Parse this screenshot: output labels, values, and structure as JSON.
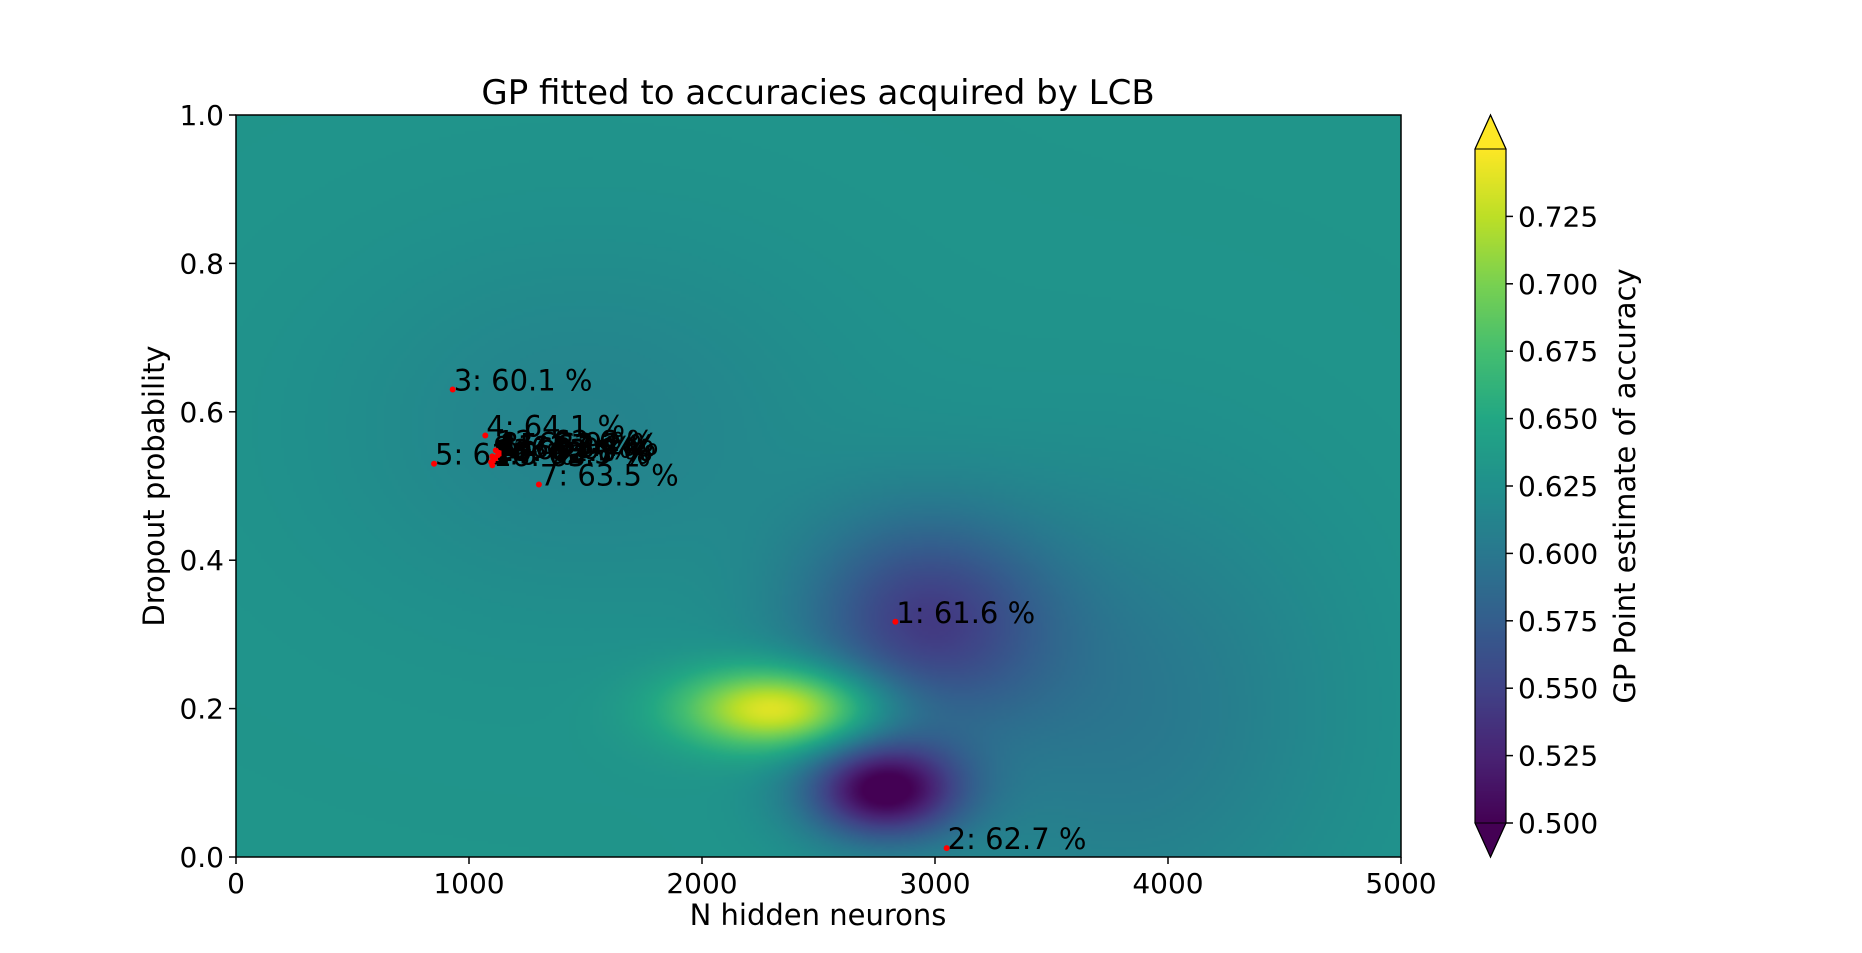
{
  "chart_data": {
    "type": "heatmap",
    "title": "GP fitted to accuracies acquired by LCB",
    "xlabel": "N hidden neurons",
    "ylabel": "Dropout probability",
    "xlim": [
      0,
      5000
    ],
    "ylim": [
      0.0,
      1.0
    ],
    "x_ticks": [
      0,
      1000,
      2000,
      3000,
      4000,
      5000
    ],
    "x_tick_labels": [
      "0",
      "1000",
      "2000",
      "3000",
      "4000",
      "5000"
    ],
    "y_ticks": [
      0.0,
      0.2,
      0.4,
      0.6,
      0.8,
      1.0
    ],
    "y_tick_labels": [
      "0.0",
      "0.2",
      "0.4",
      "0.6",
      "0.8",
      "1.0"
    ],
    "grid": false,
    "colorbar": {
      "label": "GP Point estimate of accuracy",
      "colormap": "viridis",
      "range": [
        0.5,
        0.75
      ],
      "extend": "both",
      "ticks": [
        0.5,
        0.525,
        0.55,
        0.575,
        0.6,
        0.625,
        0.65,
        0.675,
        0.7,
        0.725
      ],
      "tick_labels": [
        "0.500",
        "0.525",
        "0.550",
        "0.575",
        "0.600",
        "0.625",
        "0.650",
        "0.675",
        "0.700",
        "0.725"
      ]
    },
    "surface": {
      "base_value": 0.63,
      "features": [
        {
          "x": 2330,
          "y": 0.2,
          "peak": 0.75,
          "kind": "maximum"
        },
        {
          "x": 2780,
          "y": 0.09,
          "peak": 0.5,
          "kind": "minimum"
        },
        {
          "x": 2950,
          "y": 0.32,
          "peak": 0.555,
          "kind": "minimum"
        },
        {
          "x": 3800,
          "y": 0.2,
          "peak": 0.6,
          "kind": "minimum"
        },
        {
          "x": 1500,
          "y": 0.58,
          "peak": 0.612,
          "kind": "minimum"
        }
      ]
    },
    "marker_color": "#ff0000",
    "points": [
      {
        "label": "1: 61.6 %",
        "x": 2830,
        "y": 0.317
      },
      {
        "label": "2: 62.7 %",
        "x": 3050,
        "y": 0.012
      },
      {
        "label": "3: 60.1 %",
        "x": 930,
        "y": 0.63
      },
      {
        "label": "4: 64.1 %",
        "x": 1070,
        "y": 0.568
      },
      {
        "label": "5: 61.6 %",
        "x": 850,
        "y": 0.53
      },
      {
        "label": "6: 63.0 %",
        "x": 1120,
        "y": 0.538
      },
      {
        "label": "7: 63.5 %",
        "x": 1300,
        "y": 0.502
      },
      {
        "label": "8: 62.9 %",
        "x": 1130,
        "y": 0.545
      },
      {
        "label": "9: 63.3 %",
        "x": 1100,
        "y": 0.54
      },
      {
        "label": "10: 62.8 %",
        "x": 1110,
        "y": 0.535
      },
      {
        "label": "11: 63.4 %",
        "x": 1125,
        "y": 0.542
      },
      {
        "label": "12: 62.6 %",
        "x": 1115,
        "y": 0.548
      },
      {
        "label": "13: 63.1 %",
        "x": 1105,
        "y": 0.536
      },
      {
        "label": "14: 62.5 %",
        "x": 1095,
        "y": 0.532
      },
      {
        "label": "15: 63.2 %",
        "x": 1135,
        "y": 0.544
      },
      {
        "label": "16: 63.7 %",
        "x": 1100,
        "y": 0.528
      }
    ]
  }
}
